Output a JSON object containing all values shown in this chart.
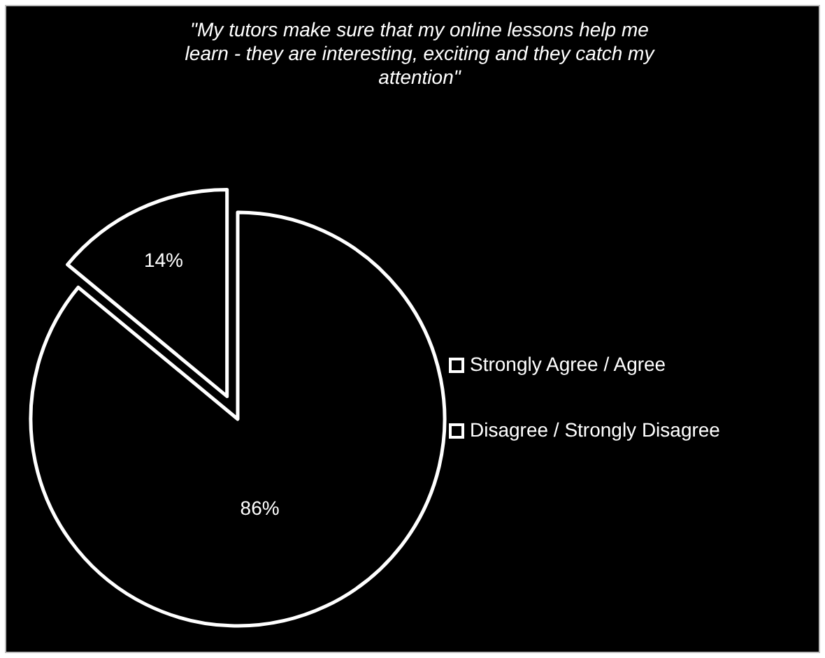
{
  "chart_data": {
    "type": "pie",
    "title": "\"My tutors make sure that my online lessons help me learn - they are interesting, exciting and they catch my attention\"",
    "categories": [
      "Strongly Agree / Agree",
      "Disagree / Strongly Disagree"
    ],
    "values": [
      86,
      14
    ],
    "colors": [
      "#000000",
      "#000000"
    ],
    "value_labels": [
      "86%",
      "14%"
    ],
    "legend": "right"
  }
}
